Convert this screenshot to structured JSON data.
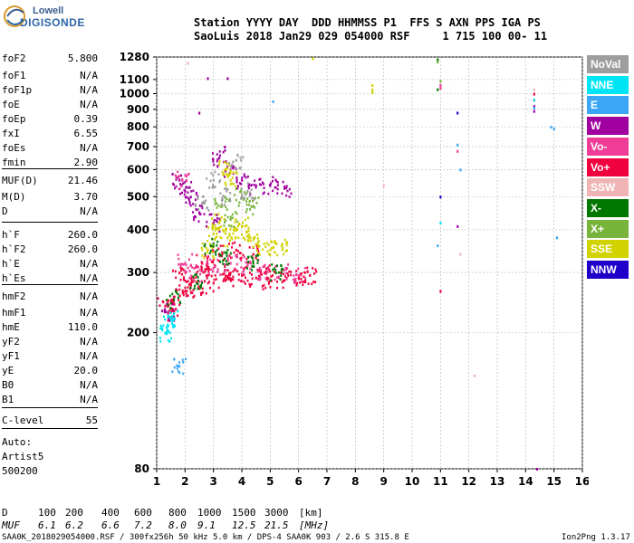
{
  "logo": {
    "line1": "Lowell",
    "line2": "DIGISONDE"
  },
  "header": {
    "line1": "Station YYYY DAY  DDD HHMMSS P1  FFS S AXN PPS IGA PS",
    "line2": "SaoLuis 2018 Jan29 029 054000 RSF     1 715 100 00- 11"
  },
  "params": [
    {
      "label": "foF2",
      "value": "5.800"
    },
    {
      "label": "foF1",
      "value": "N/A"
    },
    {
      "label": "foF1p",
      "value": "N/A"
    },
    {
      "label": "foE",
      "value": "N/A"
    },
    {
      "label": "foEp",
      "value": "0.39"
    },
    {
      "label": "fxI",
      "value": "6.55"
    },
    {
      "label": "foEs",
      "value": "N/A"
    },
    {
      "label": "fmin",
      "value": "2.90"
    },
    {
      "label": "MUF(D)",
      "value": "21.46"
    },
    {
      "label": "M(D)",
      "value": "3.70"
    },
    {
      "label": "D",
      "value": "N/A"
    },
    {
      "label": "h`F",
      "value": "260.0"
    },
    {
      "label": "h`F2",
      "value": "260.0"
    },
    {
      "label": "h`E",
      "value": "N/A"
    },
    {
      "label": "h`Es",
      "value": "N/A"
    },
    {
      "label": "hmF2",
      "value": "N/A"
    },
    {
      "label": "hmF1",
      "value": "N/A"
    },
    {
      "label": "hmE",
      "value": "110.0"
    },
    {
      "label": "yF2",
      "value": "N/A"
    },
    {
      "label": "yF1",
      "value": "N/A"
    },
    {
      "label": "yE",
      "value": "20.0"
    },
    {
      "label": "B0",
      "value": "N/A"
    },
    {
      "label": "B1",
      "value": "N/A"
    },
    {
      "label": "C-level",
      "value": "55"
    }
  ],
  "auto": {
    "line1": "Auto:",
    "line2": "Artist5",
    "line3": "500200"
  },
  "legend": [
    {
      "label": "NoVal",
      "color": "#9e9e9e"
    },
    {
      "label": "NNE",
      "color": "#00e5f5"
    },
    {
      "label": "E",
      "color": "#3aa6f5"
    },
    {
      "label": "W",
      "color": "#a0009f"
    },
    {
      "label": "Vo-",
      "color": "#f03c96"
    },
    {
      "label": "Vo+",
      "color": "#f0003c"
    },
    {
      "label": "SSW",
      "color": "#f0b4b4"
    },
    {
      "label": "X-",
      "color": "#007800"
    },
    {
      "label": "X+",
      "color": "#78b43c"
    },
    {
      "label": "SSE",
      "color": "#d2d200"
    },
    {
      "label": "NNW",
      "color": "#1e00c8"
    }
  ],
  "footer": {
    "d_label": "D",
    "d_values": [
      "100",
      "200",
      "400",
      "600",
      "800",
      "1000",
      "1500",
      "3000",
      "[km]"
    ],
    "muf_label": "MUF",
    "muf_values": [
      "6.1",
      "6.2",
      "6.6",
      "7.2",
      "8.0",
      "9.1",
      "12.5",
      "21.5",
      "[MHz]"
    ],
    "info": "SAA0K_2018029054000.RSF / 300fx256h 50 kHz 5.0 km / DPS-4 SAA0K 903 / 2.6 S 315.8 E",
    "version": "Ion2Png 1.3.17"
  },
  "chart_data": {
    "type": "scatter",
    "title": "",
    "xlabel": "",
    "ylabel": "",
    "xlim": [
      1,
      16
    ],
    "ylim": [
      80,
      1280
    ],
    "y_scale": "log",
    "x_ticks": [
      1,
      2,
      3,
      4,
      5,
      6,
      7,
      8,
      9,
      10,
      11,
      12,
      13,
      14,
      15,
      16
    ],
    "y_ticks": [
      80,
      200,
      300,
      400,
      500,
      600,
      700,
      800,
      900,
      1000,
      1100,
      1280
    ],
    "grid": true,
    "series": [
      {
        "name": "Vo+",
        "color": "#f0003c",
        "points": [
          [
            1.3,
            240
          ],
          [
            1.6,
            255
          ],
          [
            2.0,
            265
          ],
          [
            2.5,
            270
          ],
          [
            3.0,
            280
          ],
          [
            3.5,
            290
          ],
          [
            4.0,
            295
          ],
          [
            4.5,
            290
          ],
          [
            5.0,
            285
          ],
          [
            5.5,
            285
          ],
          [
            6.0,
            290
          ],
          [
            6.4,
            295
          ],
          [
            1.8,
            300
          ],
          [
            2.6,
            320
          ],
          [
            3.2,
            340
          ],
          [
            3.8,
            350
          ],
          [
            4.4,
            340
          ],
          [
            2.2,
            280
          ],
          [
            3.6,
            300
          ],
          [
            4.8,
            300
          ],
          [
            1.5,
            230
          ],
          [
            2.8,
            310
          ],
          [
            11.0,
            265
          ],
          [
            14.3,
            960
          ],
          [
            14.3,
            1000
          ]
        ]
      },
      {
        "name": "W",
        "color": "#a0009f",
        "points": [
          [
            1.8,
            560
          ],
          [
            2.0,
            520
          ],
          [
            2.2,
            500
          ],
          [
            2.5,
            450
          ],
          [
            3.0,
            420
          ],
          [
            3.2,
            650
          ],
          [
            3.4,
            700
          ],
          [
            3.6,
            600
          ],
          [
            4.0,
            560
          ],
          [
            4.5,
            540
          ],
          [
            5.0,
            540
          ],
          [
            5.5,
            530
          ],
          [
            2.8,
            1110
          ],
          [
            3.5,
            1110
          ],
          [
            2.5,
            880
          ],
          [
            1.4,
            230
          ],
          [
            11.6,
            410
          ],
          [
            14.3,
            890
          ],
          [
            14.3,
            920
          ],
          [
            14.4,
            80
          ]
        ]
      },
      {
        "name": "SSE",
        "color": "#d2d200",
        "points": [
          [
            2.8,
            350
          ],
          [
            3.0,
            390
          ],
          [
            3.2,
            420
          ],
          [
            3.5,
            380
          ],
          [
            3.8,
            400
          ],
          [
            4.0,
            410
          ],
          [
            4.3,
            380
          ],
          [
            4.6,
            360
          ],
          [
            5.0,
            350
          ],
          [
            5.4,
            360
          ],
          [
            3.4,
            600
          ],
          [
            3.6,
            560
          ],
          [
            6.5,
            1270
          ],
          [
            8.6,
            1060
          ],
          [
            8.6,
            1030
          ],
          [
            8.6,
            1010
          ]
        ]
      },
      {
        "name": "Vo-",
        "color": "#f03c96",
        "points": [
          [
            2.0,
            320
          ],
          [
            2.4,
            300
          ],
          [
            3.0,
            310
          ],
          [
            3.6,
            320
          ],
          [
            4.2,
            315
          ],
          [
            4.8,
            300
          ],
          [
            5.4,
            300
          ],
          [
            6.0,
            295
          ],
          [
            1.9,
            560
          ],
          [
            11.0,
            1040
          ],
          [
            11.0,
            1060
          ],
          [
            11.6,
            680
          ]
        ]
      },
      {
        "name": "X-",
        "color": "#007800",
        "points": [
          [
            1.6,
            250
          ],
          [
            2.4,
            280
          ],
          [
            3.4,
            330
          ],
          [
            4.4,
            320
          ],
          [
            5.2,
            300
          ],
          [
            2.9,
            360
          ],
          [
            10.9,
            1260
          ],
          [
            10.9,
            1030
          ]
        ]
      },
      {
        "name": "X+",
        "color": "#78b43c",
        "points": [
          [
            3.3,
            470
          ],
          [
            3.6,
            430
          ],
          [
            4.0,
            500
          ],
          [
            4.4,
            470
          ],
          [
            10.9,
            1240
          ],
          [
            11.0,
            1090
          ]
        ]
      },
      {
        "name": "NNE",
        "color": "#00e5f5",
        "points": [
          [
            1.4,
            210
          ],
          [
            1.5,
            220
          ],
          [
            1.3,
            200
          ],
          [
            11.0,
            420
          ],
          [
            14.3,
            960
          ]
        ]
      },
      {
        "name": "E",
        "color": "#3aa6f5",
        "points": [
          [
            1.8,
            160
          ],
          [
            5.1,
            950
          ],
          [
            10.9,
            360
          ],
          [
            11.7,
            600
          ],
          [
            11.6,
            710
          ],
          [
            14.3,
            910
          ],
          [
            14.9,
            800
          ],
          [
            15.0,
            790
          ],
          [
            15.1,
            380
          ]
        ]
      },
      {
        "name": "NNW",
        "color": "#1e00c8",
        "points": [
          [
            11.6,
            880
          ],
          [
            11.0,
            500
          ]
        ]
      },
      {
        "name": "SSW",
        "color": "#f0b4b4",
        "points": [
          [
            2.1,
            1230
          ],
          [
            9.0,
            540
          ],
          [
            12.2,
            150
          ],
          [
            11.7,
            340
          ],
          [
            14.3,
            1030
          ]
        ]
      },
      {
        "name": "NoVal",
        "color": "#9e9e9e",
        "points": [
          [
            3.4,
            500
          ],
          [
            3.8,
            640
          ],
          [
            3.0,
            560
          ],
          [
            4.2,
            520
          ],
          [
            2.6,
            480
          ]
        ]
      }
    ]
  }
}
